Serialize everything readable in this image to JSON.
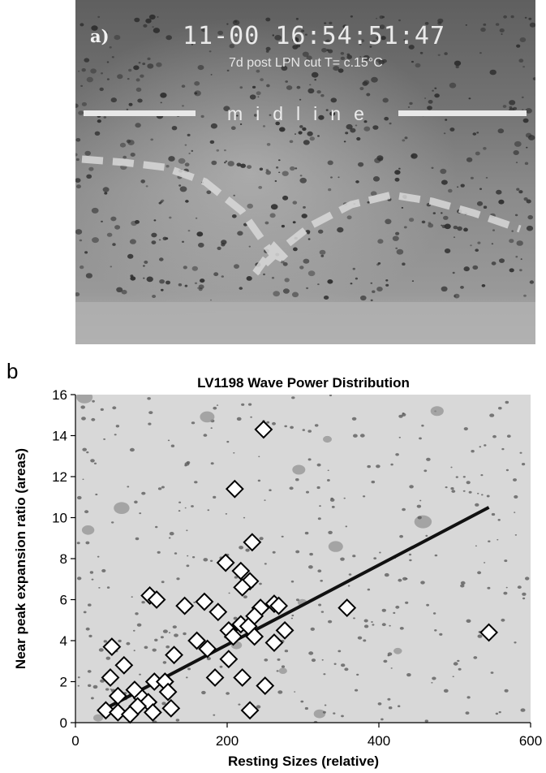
{
  "panel_a": {
    "letter": "a)",
    "timestamp": "11-00  16:54:51:47",
    "caption": "7d post LPN cut T= c.15°C",
    "midline_label": "midline"
  },
  "panel_b": {
    "letter": "b"
  },
  "chart_data": {
    "type": "scatter",
    "title": "LV1198 Wave Power Distribution",
    "xlabel": "Resting Sizes (relative)",
    "ylabel": "Near peak expansion ratio (areas)",
    "xlim": [
      0,
      600
    ],
    "ylim": [
      0,
      16
    ],
    "xticks": [
      0,
      200,
      400,
      600
    ],
    "yticks": [
      0,
      2,
      4,
      6,
      8,
      10,
      12,
      14,
      16
    ],
    "grid": false,
    "marker": "open diamond",
    "points": [
      {
        "x": 248,
        "y": 14.3
      },
      {
        "x": 210,
        "y": 11.4
      },
      {
        "x": 233,
        "y": 8.8
      },
      {
        "x": 198,
        "y": 7.8
      },
      {
        "x": 218,
        "y": 7.4
      },
      {
        "x": 230,
        "y": 6.9
      },
      {
        "x": 220,
        "y": 6.6
      },
      {
        "x": 98,
        "y": 6.2
      },
      {
        "x": 107,
        "y": 6.0
      },
      {
        "x": 170,
        "y": 5.9
      },
      {
        "x": 144,
        "y": 5.7
      },
      {
        "x": 262,
        "y": 5.8
      },
      {
        "x": 268,
        "y": 5.7
      },
      {
        "x": 358,
        "y": 5.6
      },
      {
        "x": 244,
        "y": 5.6
      },
      {
        "x": 188,
        "y": 5.4
      },
      {
        "x": 236,
        "y": 5.2
      },
      {
        "x": 218,
        "y": 4.8
      },
      {
        "x": 228,
        "y": 4.7
      },
      {
        "x": 276,
        "y": 4.5
      },
      {
        "x": 202,
        "y": 4.5
      },
      {
        "x": 545,
        "y": 4.4
      },
      {
        "x": 208,
        "y": 4.2
      },
      {
        "x": 236,
        "y": 4.2
      },
      {
        "x": 160,
        "y": 4.0
      },
      {
        "x": 262,
        "y": 3.9
      },
      {
        "x": 48,
        "y": 3.7
      },
      {
        "x": 174,
        "y": 3.6
      },
      {
        "x": 130,
        "y": 3.3
      },
      {
        "x": 202,
        "y": 3.1
      },
      {
        "x": 64,
        "y": 2.8
      },
      {
        "x": 46,
        "y": 2.2
      },
      {
        "x": 184,
        "y": 2.2
      },
      {
        "x": 220,
        "y": 2.2
      },
      {
        "x": 104,
        "y": 2.0
      },
      {
        "x": 118,
        "y": 2.0
      },
      {
        "x": 250,
        "y": 1.8
      },
      {
        "x": 78,
        "y": 1.6
      },
      {
        "x": 122,
        "y": 1.5
      },
      {
        "x": 56,
        "y": 1.3
      },
      {
        "x": 88,
        "y": 1.2
      },
      {
        "x": 96,
        "y": 1.0
      },
      {
        "x": 82,
        "y": 0.8
      },
      {
        "x": 126,
        "y": 0.7
      },
      {
        "x": 40,
        "y": 0.6
      },
      {
        "x": 230,
        "y": 0.6
      },
      {
        "x": 56,
        "y": 0.5
      },
      {
        "x": 102,
        "y": 0.5
      },
      {
        "x": 72,
        "y": 0.4
      }
    ],
    "trendline": {
      "x": [
        35,
        545
      ],
      "y": [
        0.6,
        10.5
      ]
    }
  }
}
